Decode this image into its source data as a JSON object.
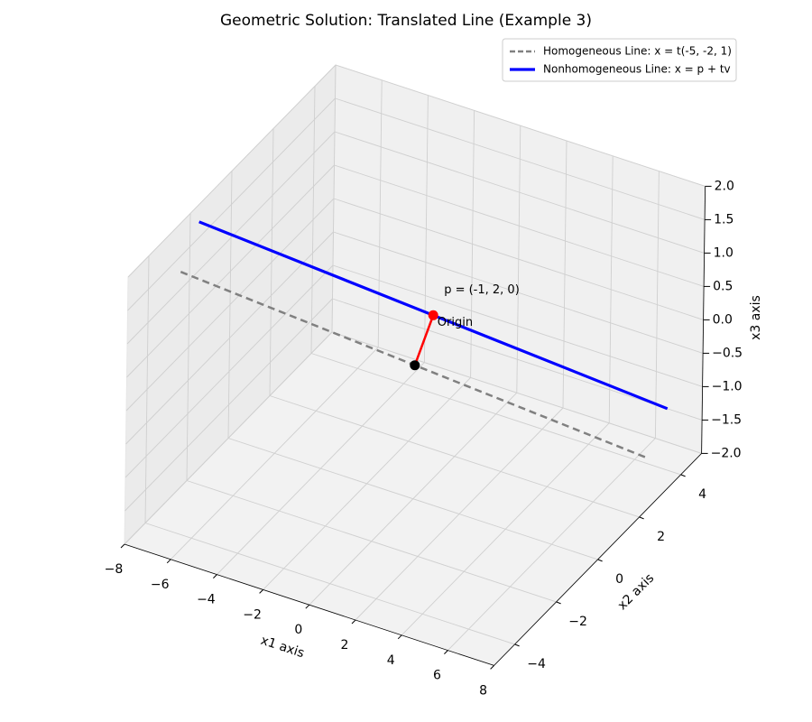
{
  "chart_data": {
    "type": "line3d",
    "title": "Geometric Solution: Translated Line (Example 3)",
    "xlabel": "x1 axis",
    "ylabel": "x2 axis",
    "zlabel": "x3 axis",
    "xlim": [
      -8,
      8
    ],
    "ylim": [
      -5,
      5
    ],
    "zlim": [
      -2,
      2
    ],
    "xticks": [
      {
        "value": -8,
        "label": "−8"
      },
      {
        "value": -6,
        "label": "−6"
      },
      {
        "value": -4,
        "label": "−4"
      },
      {
        "value": -2,
        "label": "−2"
      },
      0,
      2,
      4,
      6,
      8
    ],
    "yticks": [
      {
        "value": -4,
        "label": "−4"
      },
      {
        "value": -2,
        "label": "−2"
      },
      0,
      2,
      4
    ],
    "zticks": [
      {
        "value": -2,
        "label": "−2.0"
      },
      {
        "value": -1.5,
        "label": "−1.5"
      },
      {
        "value": -1,
        "label": "−1.0"
      },
      {
        "value": -0.5,
        "label": "−0.5"
      },
      {
        "value": 0,
        "label": "0.0"
      },
      0.5,
      {
        "value": 1,
        "label": "1.0"
      },
      1.5,
      {
        "value": 2,
        "label": "2.0"
      }
    ],
    "grid": true,
    "legend": "upper right",
    "series": [
      {
        "name": "Homogeneous Line: x = t(-5, -2, 1)",
        "color": "#808080",
        "linestyle": "dashed",
        "x": [
          -7.5,
          7.5
        ],
        "y": [
          -3,
          3
        ],
        "z": [
          1.5,
          -1.5
        ]
      },
      {
        "name": "Nonhomogeneous Line: x = p + tv",
        "color": "#0000ff",
        "linestyle": "solid",
        "x": [
          -8.5,
          6.5
        ],
        "y": [
          -1,
          5
        ],
        "z": [
          1.5,
          -1.5
        ]
      }
    ],
    "vector": {
      "color": "#ff0000",
      "x": [
        0,
        -1
      ],
      "y": [
        0,
        2
      ],
      "z": [
        0,
        0
      ]
    },
    "points": [
      {
        "label": "Origin",
        "color": "#000000",
        "x": 0,
        "y": 0,
        "z": 0
      },
      {
        "label": "p = (-1, 2, 0)",
        "color": "#ff0000",
        "x": -1,
        "y": 2,
        "z": 0
      }
    ]
  }
}
